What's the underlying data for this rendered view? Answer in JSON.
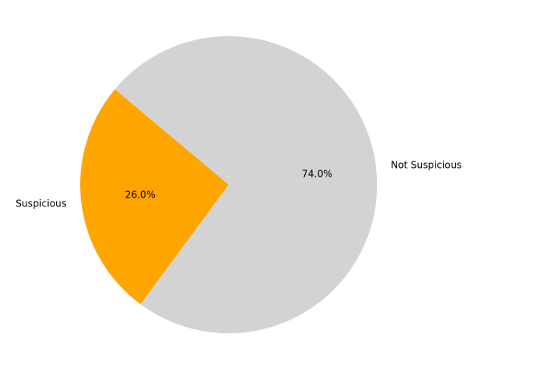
{
  "chart_data": {
    "type": "pie",
    "slices": [
      {
        "label": "Suspicious",
        "value": 26.0,
        "pct_label": "26.0%",
        "color": "#ffa500"
      },
      {
        "label": "Not Suspicious",
        "value": 74.0,
        "pct_label": "74.0%",
        "color": "#d3d3d3"
      }
    ],
    "start_angle_deg": 140,
    "counterclockwise": true,
    "legend": "none",
    "title": ""
  }
}
